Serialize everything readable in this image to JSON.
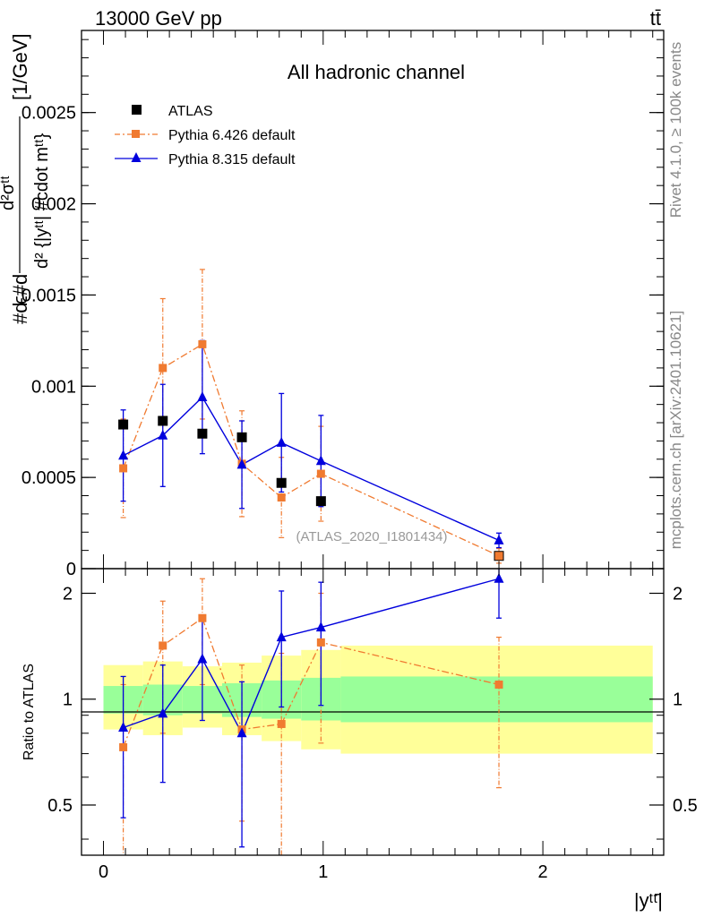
{
  "header": {
    "energy_label": "13000 GeV pp",
    "process_label": "tt̄",
    "rivet_label": "Rivet 4.1.0, ≥ 100k events",
    "mcplots_label": "mcplots.cern.ch [arXiv:2401.10621]"
  },
  "chart_data": [
    {
      "type": "scatter",
      "title": "All hadronic channel",
      "watermark": "(ATLAS_2020_I1801434)",
      "ylabel_main": "#d #sigma^{tt} / (d^{2} {|y^{tt}| #cdot m^{tt}}) [1/GeV]",
      "ylabel_parts": {
        "a": "#d",
        "b": "ϵ#d",
        "frac_num": "d²σᵗᵗ",
        "frac_den": "d² {|yᵗᵗ| #cdot mᵗᵗ}",
        "unit": "[1/GeV]"
      },
      "xlim": [
        -0.1,
        2.55
      ],
      "ylim": [
        0,
        0.00295
      ],
      "yticks": [
        0,
        0.0005,
        0.001,
        0.0015,
        0.002,
        0.0025
      ],
      "ytick_labels": [
        "0",
        "0.0005",
        "0.001",
        "0.0015",
        "0.002",
        "0.0025"
      ],
      "series": [
        {
          "name": "ATLAS",
          "color": "#000000",
          "marker": "square",
          "x": [
            0.09,
            0.27,
            0.45,
            0.63,
            0.81,
            0.99,
            1.8
          ],
          "y": [
            0.00079,
            0.00081,
            0.00074,
            0.00072,
            0.00047,
            0.00037,
            7e-05
          ]
        },
        {
          "name": "Pythia 6.426 default",
          "color": "#f07a30",
          "marker": "square",
          "x": [
            0.09,
            0.27,
            0.45,
            0.63,
            0.81,
            0.99,
            1.8
          ],
          "y": [
            0.00055,
            0.0011,
            0.00123,
            0.000575,
            0.00039,
            0.00052,
            7e-05
          ],
          "yerr": [
            0.00027,
            0.00038,
            0.00041,
            0.00029,
            0.00022,
            0.00026,
            4e-05
          ]
        },
        {
          "name": "Pythia 8.315 default",
          "color": "#0000dd",
          "marker": "triangle",
          "x": [
            0.09,
            0.27,
            0.45,
            0.63,
            0.81,
            0.99,
            1.8
          ],
          "y": [
            0.00062,
            0.00073,
            0.00094,
            0.00057,
            0.00069,
            0.00059,
            0.000155
          ],
          "yerr": [
            0.00025,
            0.00028,
            0.00031,
            0.00024,
            0.00027,
            0.00025,
            4e-05
          ]
        }
      ]
    },
    {
      "type": "scatter",
      "ylabel": "Ratio to ATLAS",
      "xlabel": "|yᵗᵗ̄|",
      "xlim": [
        -0.1,
        2.55
      ],
      "ylim": [
        0.36,
        2.35
      ],
      "yticks": [
        0.5,
        1,
        2
      ],
      "ytick_labels": [
        "0.5",
        "1",
        "2"
      ],
      "xticks": [
        0,
        1,
        2
      ],
      "xtick_labels": [
        "0",
        "1",
        "2"
      ],
      "bands": {
        "edges": [
          0,
          0.18,
          0.36,
          0.54,
          0.72,
          0.9,
          1.08,
          2.5
        ],
        "green_low": [
          0.91,
          0.9,
          0.91,
          0.89,
          0.88,
          0.87,
          0.86
        ],
        "green_high": [
          1.09,
          1.1,
          1.09,
          1.11,
          1.13,
          1.15,
          1.16
        ],
        "yellow_low": [
          0.82,
          0.79,
          0.83,
          0.79,
          0.76,
          0.72,
          0.7
        ],
        "yellow_high": [
          1.25,
          1.28,
          1.24,
          1.27,
          1.33,
          1.38,
          1.42
        ],
        "green_color": "#99ff99",
        "yellow_color": "#ffff99"
      },
      "series": [
        {
          "name": "Pythia 6.426 default",
          "color": "#f07a30",
          "x": [
            0.09,
            0.27,
            0.45,
            0.63,
            0.81,
            0.99,
            1.8
          ],
          "y": [
            0.73,
            1.42,
            1.7,
            0.82,
            0.85,
            1.45,
            1.1
          ],
          "ylow": [
            0.3,
            0.8,
            1.1,
            0.45,
            0.3,
            0.75,
            0.56
          ],
          "yhigh": [
            1.1,
            1.9,
            2.2,
            1.25,
            1.35,
            2.0,
            1.5
          ]
        },
        {
          "name": "Pythia 8.315 default",
          "color": "#0000dd",
          "x": [
            0.09,
            0.27,
            0.45,
            0.63,
            0.81,
            0.99,
            1.8
          ],
          "y": [
            0.83,
            0.91,
            1.3,
            0.8,
            1.5,
            1.6,
            2.2
          ],
          "ylow": [
            0.46,
            0.58,
            0.87,
            0.38,
            0.95,
            0.96,
            1.7
          ],
          "yhigh": [
            1.16,
            1.25,
            1.7,
            1.12,
            2.03,
            2.15,
            2.35
          ]
        }
      ]
    }
  ]
}
